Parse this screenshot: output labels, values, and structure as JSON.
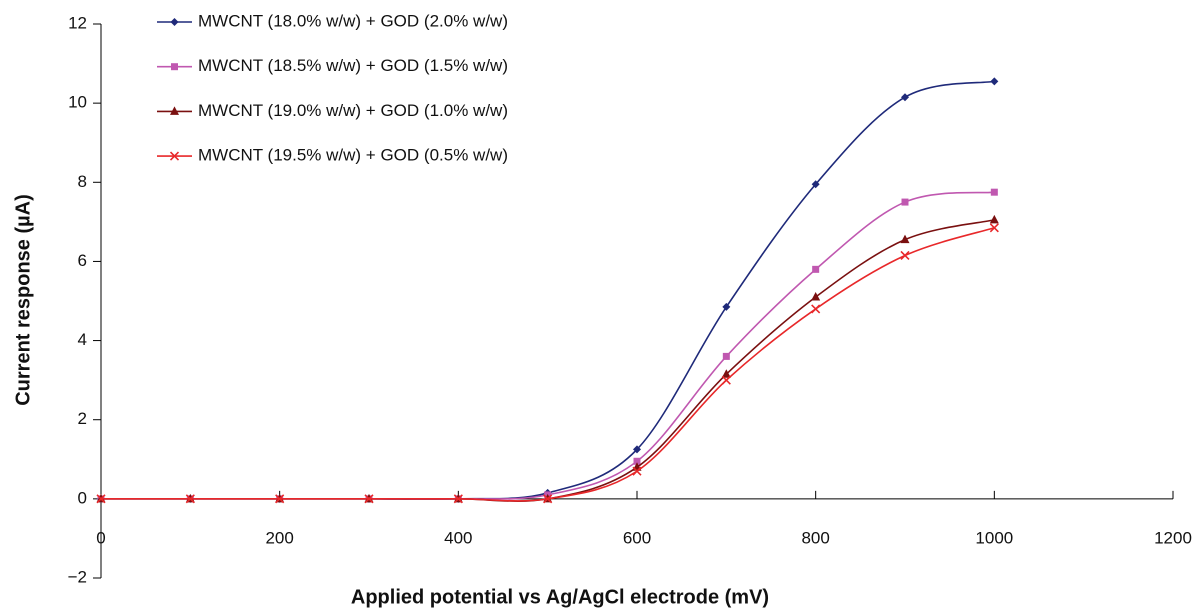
{
  "chart_data": {
    "type": "line",
    "x_label": "Applied potential  vs Ag/AgCl electrode (mV)",
    "y_label": "Current response (µA)",
    "x": [
      0,
      100,
      200,
      300,
      400,
      500,
      600,
      700,
      800,
      900,
      1000
    ],
    "series": [
      {
        "name": "MWCNT (18.0% w/w) + GOD (2.0% w/w)",
        "color": "#1f2a7a",
        "marker": "diamond",
        "values": [
          0,
          0,
          0,
          0,
          0,
          0.15,
          1.25,
          4.85,
          7.95,
          10.15,
          10.55
        ]
      },
      {
        "name": "MWCNT (18.5% w/w) + GOD (1.5% w/w)",
        "color": "#c058b0",
        "marker": "square",
        "values": [
          0,
          0,
          0,
          0,
          0,
          0.1,
          0.95,
          3.6,
          5.8,
          7.5,
          7.75
        ]
      },
      {
        "name": "MWCNT (19.0% w/w) + GOD (1.0% w/w)",
        "color": "#7a1010",
        "marker": "triangle",
        "values": [
          0,
          0,
          0,
          0,
          0,
          0,
          0.8,
          3.15,
          5.1,
          6.55,
          7.05
        ]
      },
      {
        "name": "MWCNT (19.5% w/w) + GOD (0.5% w/w)",
        "color": "#e8282a",
        "marker": "x",
        "values": [
          0,
          0,
          0,
          0,
          0,
          0,
          0.7,
          3.0,
          4.8,
          6.15,
          6.85
        ]
      }
    ],
    "xlim": [
      0,
      1200
    ],
    "xticks": [
      0,
      200,
      400,
      600,
      800,
      1000,
      1200
    ],
    "ylim": [
      -2,
      12
    ],
    "yticks": [
      {
        "value": -2,
        "label": "−2"
      },
      0,
      2,
      4,
      6,
      8,
      10,
      12
    ],
    "smooth": true
  }
}
